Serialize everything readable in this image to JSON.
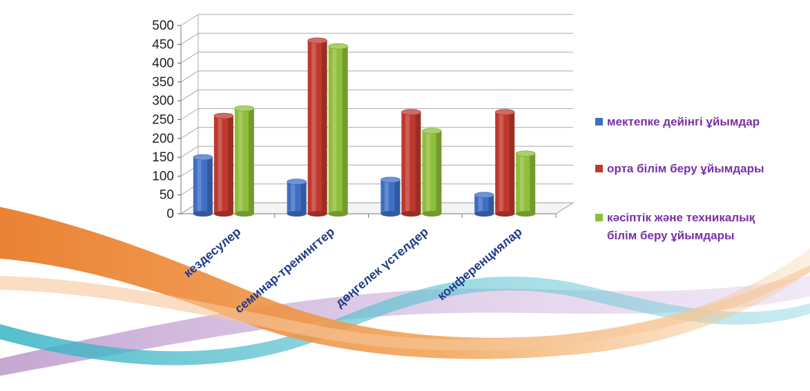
{
  "chart_data": {
    "type": "bar",
    "title": "",
    "xlabel": "",
    "ylabel": "",
    "ylim": [
      0,
      500
    ],
    "yticks": [
      0,
      50,
      100,
      150,
      200,
      250,
      300,
      350,
      400,
      450,
      500
    ],
    "grid": true,
    "legend_position": "right",
    "categories": [
      "кездесулер",
      "семинар-тренингтер",
      "дөңгелек үстелдер",
      "конференциялар"
    ],
    "series": [
      {
        "name": "мектепке дейінгі ұйымдар",
        "color": "#3f6fc4",
        "values": [
          150,
          85,
          90,
          50
        ]
      },
      {
        "name": "орта білім беру ұйымдары",
        "color": "#c0392e",
        "values": [
          260,
          460,
          270,
          270
        ]
      },
      {
        "name": "кәсіптік және техникалық білім беру ұйымдары",
        "color": "#8fbf3a",
        "values": [
          280,
          445,
          220,
          160
        ]
      }
    ]
  },
  "legend": {
    "items": [
      {
        "lines": [
          "мектепке дейінгі ұйымдар"
        ],
        "color": "#3f6fc4"
      },
      {
        "lines": [
          "орта білім беру ұйымдары"
        ],
        "color": "#c0392e"
      },
      {
        "lines": [
          "кәсіптік және техникалық",
          "білім беру ұйымдары"
        ],
        "color": "#8fbf3a"
      }
    ],
    "text_color": "#7a2fa8"
  }
}
